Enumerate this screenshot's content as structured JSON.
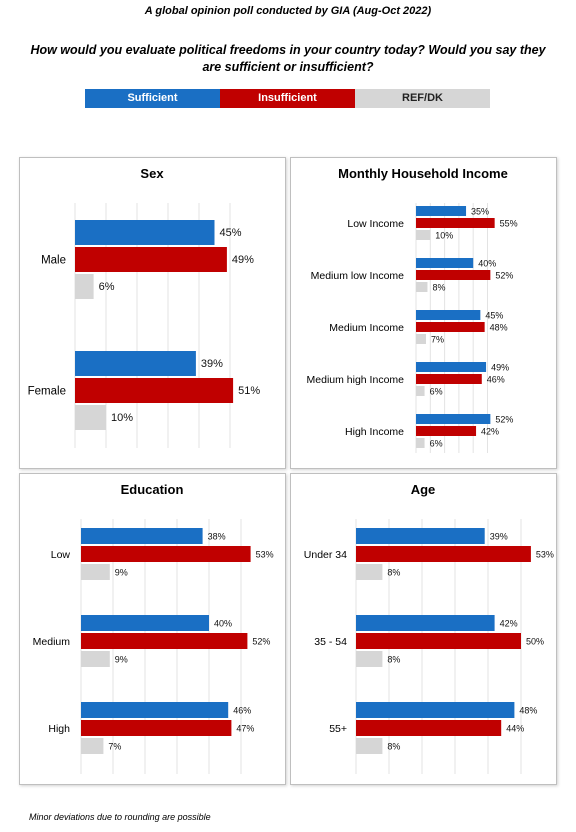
{
  "supertitle": "A global opinion poll conducted by GIA (Aug-Oct 2022)",
  "question": "How would you evaluate political freedoms in your country today?  Would you say they are sufficient or insufficient?",
  "legend": [
    {
      "label": "Sufficient",
      "color": "#1a6fc4"
    },
    {
      "label": "Insufficient",
      "color": "#c00000"
    },
    {
      "label": "REF/DK",
      "color": "#d6d6d6"
    }
  ],
  "footnote": "Minor deviations due to rounding are possible",
  "chart_data": [
    {
      "type": "bar",
      "orientation": "horizontal",
      "title": "Sex",
      "categories": [
        "Male",
        "Female"
      ],
      "series": [
        {
          "name": "Sufficient",
          "values": [
            45,
            39
          ],
          "labels": [
            "45%",
            "39%"
          ]
        },
        {
          "name": "Insufficient",
          "values": [
            49,
            51
          ],
          "labels": [
            "49%",
            "51%"
          ]
        },
        {
          "name": "REF/DK",
          "values": [
            6,
            10
          ],
          "labels": [
            "6%",
            "10%"
          ]
        }
      ],
      "xlim": [
        0,
        60
      ],
      "grid": true
    },
    {
      "type": "bar",
      "orientation": "horizontal",
      "title": "Monthly Household Income",
      "categories": [
        "Low Income",
        "Medium low Income",
        "Medium Income",
        "Medium high Income",
        "High Income"
      ],
      "series": [
        {
          "name": "Sufficient",
          "values": [
            35,
            40,
            45,
            49,
            52
          ],
          "labels": [
            "35%",
            "40%",
            "45%",
            "49%",
            "52%"
          ]
        },
        {
          "name": "Insufficient",
          "values": [
            55,
            52,
            48,
            46,
            42
          ],
          "labels": [
            "55%",
            "52%",
            "48%",
            "46%",
            "42%"
          ]
        },
        {
          "name": "REF/DK",
          "values": [
            10,
            8,
            7,
            6,
            6
          ],
          "labels": [
            "10%",
            "8%",
            "7%",
            "6%",
            "6%"
          ]
        }
      ],
      "xlim": [
        0,
        60
      ],
      "grid": true
    },
    {
      "type": "bar",
      "orientation": "horizontal",
      "title": "Education",
      "categories": [
        "Low",
        "Medium",
        "High"
      ],
      "series": [
        {
          "name": "Sufficient",
          "values": [
            38,
            40,
            46
          ],
          "labels": [
            "38%",
            "40%",
            "46%"
          ]
        },
        {
          "name": "Insufficient",
          "values": [
            53,
            52,
            47
          ],
          "labels": [
            "53%",
            "52%",
            "47%"
          ]
        },
        {
          "name": "REF/DK",
          "values": [
            9,
            9,
            7
          ],
          "labels": [
            "9%",
            "9%",
            "7%"
          ]
        }
      ],
      "xlim": [
        0,
        60
      ],
      "grid": true
    },
    {
      "type": "bar",
      "orientation": "horizontal",
      "title": "Age",
      "categories": [
        "Under 34",
        "35 - 54",
        "55+"
      ],
      "series": [
        {
          "name": "Sufficient",
          "values": [
            39,
            42,
            48
          ],
          "labels": [
            "39%",
            "42%",
            "48%"
          ]
        },
        {
          "name": "Insufficient",
          "values": [
            53,
            50,
            44
          ],
          "labels": [
            "53%",
            "50%",
            "44%"
          ]
        },
        {
          "name": "REF/DK",
          "values": [
            8,
            8,
            8
          ],
          "labels": [
            "8%",
            "8%",
            "8%"
          ]
        }
      ],
      "xlim": [
        0,
        60
      ],
      "grid": true
    }
  ]
}
